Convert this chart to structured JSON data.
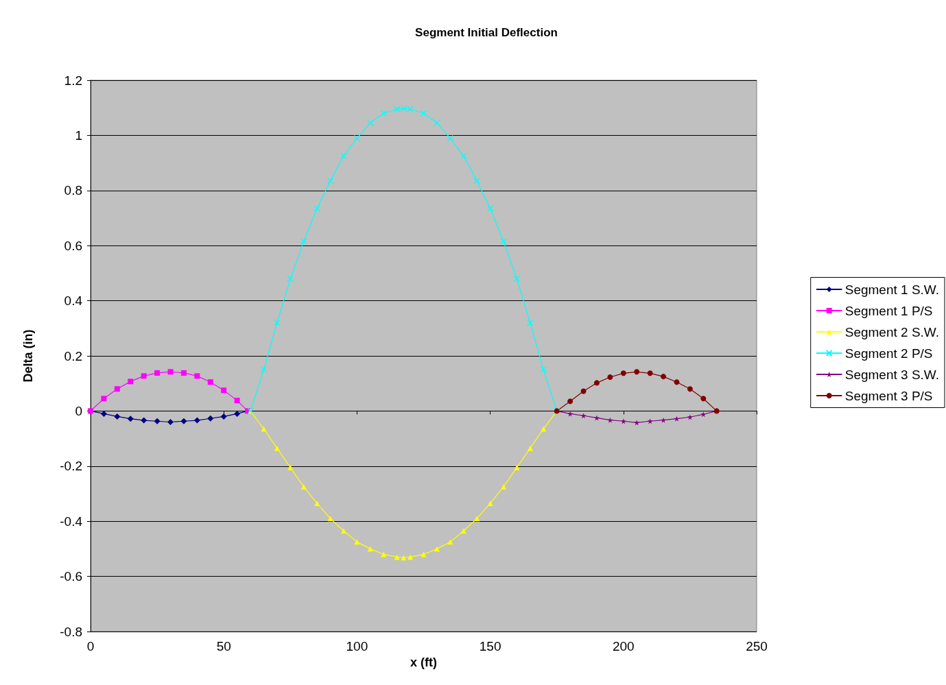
{
  "chart_data": {
    "type": "line",
    "title": "Segment Initial Deflection",
    "xlabel": "x (ft)",
    "ylabel": "Delta (in)",
    "xlim": [
      0,
      250
    ],
    "xticks": [
      0,
      50,
      100,
      150,
      200,
      250
    ],
    "ylim": [
      -0.8,
      1.2
    ],
    "yticks": [
      -0.8,
      -0.6,
      -0.4,
      -0.2,
      0,
      0.2,
      0.4,
      0.6,
      0.8,
      1,
      1.2
    ],
    "grid": "y",
    "legend": "right",
    "series": [
      {
        "name": "Segment 1 S.W.",
        "color": "#000080",
        "marker": "diamond",
        "x": [
          0,
          5,
          10,
          15,
          20,
          25,
          30,
          35,
          40,
          45,
          50,
          55,
          59
        ],
        "values": [
          0,
          -0.01,
          -0.02,
          -0.028,
          -0.034,
          -0.037,
          -0.04,
          -0.037,
          -0.034,
          -0.027,
          -0.02,
          -0.01,
          0
        ]
      },
      {
        "name": "Segment 1 P/S",
        "color": "#ff00ff",
        "marker": "square",
        "x": [
          0,
          5,
          10,
          15,
          20,
          25,
          30,
          35,
          40,
          45,
          50,
          55,
          59
        ],
        "values": [
          0,
          0.045,
          0.08,
          0.107,
          0.127,
          0.138,
          0.142,
          0.138,
          0.127,
          0.105,
          0.075,
          0.038,
          0
        ]
      },
      {
        "name": "Segment 2 S.W.",
        "color": "#ffff00",
        "marker": "triangle",
        "x": [
          60,
          65,
          70,
          75,
          80,
          85,
          90,
          95,
          100,
          105,
          110,
          115,
          117.5,
          120,
          125,
          130,
          135,
          140,
          145,
          150,
          155,
          160,
          165,
          170,
          175
        ],
        "values": [
          0,
          -0.065,
          -0.135,
          -0.205,
          -0.275,
          -0.335,
          -0.39,
          -0.435,
          -0.475,
          -0.5,
          -0.52,
          -0.53,
          -0.532,
          -0.53,
          -0.52,
          -0.5,
          -0.475,
          -0.435,
          -0.39,
          -0.335,
          -0.275,
          -0.205,
          -0.135,
          -0.065,
          0
        ]
      },
      {
        "name": "Segment 2 P/S",
        "color": "#00ffff",
        "marker": "cross",
        "x": [
          60,
          65,
          70,
          75,
          80,
          85,
          90,
          95,
          100,
          105,
          110,
          115,
          117.5,
          120,
          125,
          130,
          135,
          140,
          145,
          150,
          155,
          160,
          165,
          170,
          175
        ],
        "values": [
          0,
          0.15,
          0.32,
          0.48,
          0.615,
          0.735,
          0.835,
          0.925,
          0.99,
          1.045,
          1.08,
          1.095,
          1.097,
          1.095,
          1.08,
          1.045,
          0.99,
          0.925,
          0.835,
          0.735,
          0.615,
          0.48,
          0.32,
          0.15,
          0
        ]
      },
      {
        "name": "Segment 3 S.W.",
        "color": "#800080",
        "marker": "star",
        "x": [
          175,
          180,
          185,
          190,
          195,
          200,
          205,
          210,
          215,
          220,
          225,
          230,
          235
        ],
        "values": [
          0,
          -0.01,
          -0.017,
          -0.025,
          -0.033,
          -0.037,
          -0.042,
          -0.037,
          -0.033,
          -0.028,
          -0.022,
          -0.012,
          0
        ]
      },
      {
        "name": "Segment 3 P/S",
        "color": "#800000",
        "marker": "circle",
        "x": [
          175,
          180,
          185,
          190,
          195,
          200,
          205,
          210,
          215,
          220,
          225,
          230,
          235
        ],
        "values": [
          0,
          0.035,
          0.072,
          0.102,
          0.123,
          0.137,
          0.142,
          0.137,
          0.125,
          0.105,
          0.08,
          0.045,
          0
        ]
      }
    ]
  }
}
